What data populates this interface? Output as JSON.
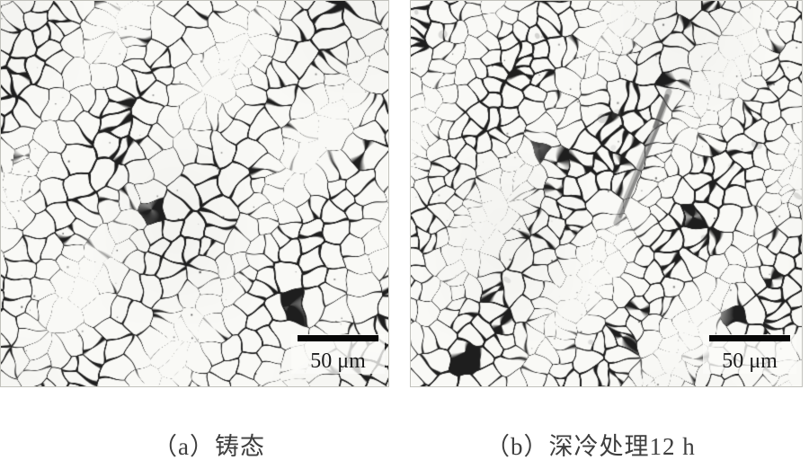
{
  "figure": {
    "type": "micrograph-comparison",
    "panels": [
      {
        "label": "a",
        "caption": "（a）铸态",
        "scale_bar": "50 μm"
      },
      {
        "label": "b",
        "caption": "（b）深冷处理12 h",
        "scale_bar": "50 μm"
      }
    ],
    "colors": {
      "page_background": "#ffffff",
      "micrograph_bg": "#f9f9f6",
      "grain_boundary": "#1e1e1e",
      "scale_bar": "#070707",
      "caption_text": "#3e3e3e",
      "streak_gray": "#6e6e6e"
    }
  }
}
